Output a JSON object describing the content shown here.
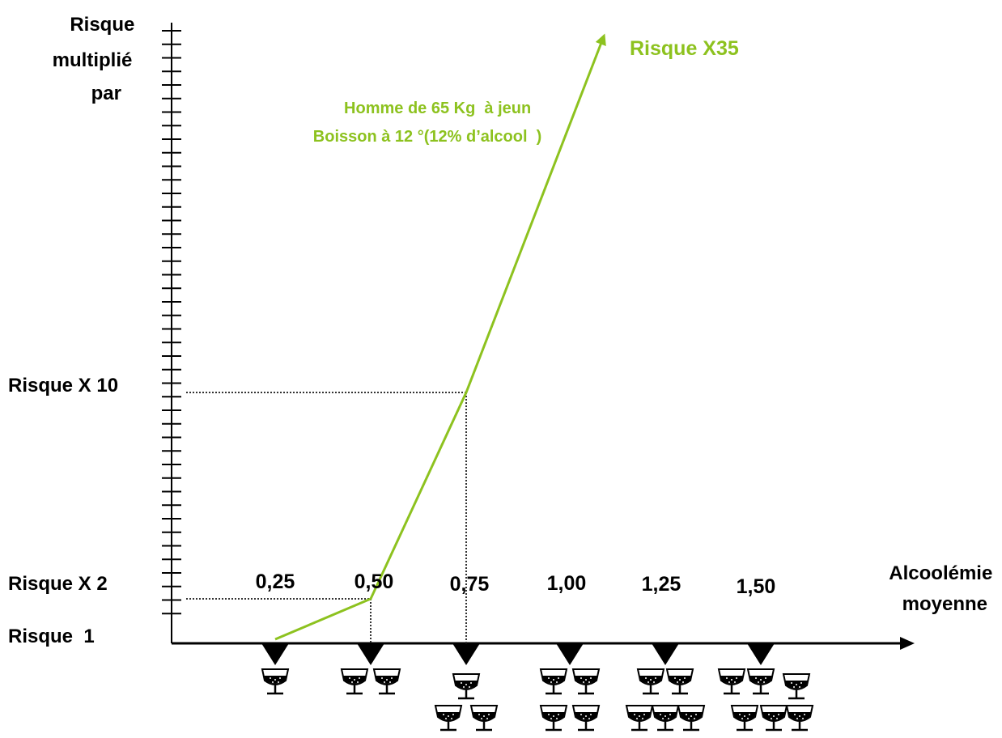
{
  "chart_data": {
    "type": "line",
    "xlabel": [
      "Alcoolémie",
      "moyenne"
    ],
    "ylabel": [
      "Risque",
      "multiplié",
      "par"
    ],
    "x_ticks": [
      "0,25",
      "0,50",
      "0,75",
      "1,00",
      "1,25",
      "1,50"
    ],
    "y_labels": [
      {
        "text": "Risque X 10",
        "value": 10
      },
      {
        "text": "Risque X 2",
        "value": 2
      },
      {
        "text": "Risque  1",
        "value": 1
      }
    ],
    "series": [
      {
        "points": [
          {
            "x": 0.25,
            "y": 1
          },
          {
            "x": 0.5,
            "y": 2
          },
          {
            "x": 0.75,
            "y": 10
          },
          {
            "x": 1.1,
            "y": 35
          }
        ],
        "end_label": "Risque X35",
        "color": "#8dc21f"
      }
    ],
    "annotation": [
      "Homme de 65 Kg  à jeun",
      "Boisson à 12 °(12% d’alcool  )"
    ],
    "reference_lines": [
      {
        "x": 0.5,
        "y": 2
      },
      {
        "x": 0.75,
        "y": 10
      }
    ],
    "glasses_per_tick": [
      1,
      2,
      3,
      4,
      5,
      6
    ],
    "glass_icon": "wine-glass-icon",
    "marker_icon": "down-triangle-icon",
    "axis_color": "#000000"
  }
}
